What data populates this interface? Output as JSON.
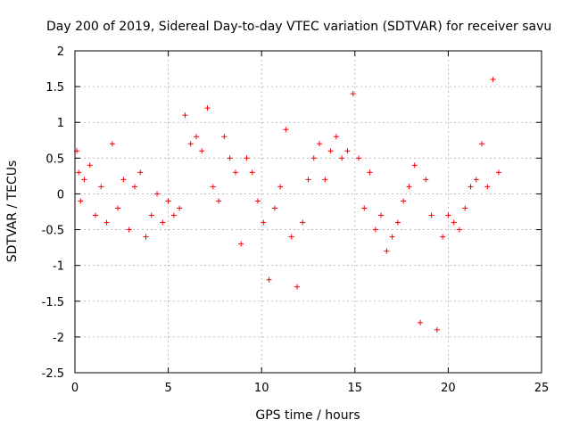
{
  "chart_data": {
    "type": "scatter",
    "title": "Day 200 of 2019, Sidereal Day-to-day VTEC variation (SDTVAR) for receiver savu",
    "xlabel": "GPS time / hours",
    "ylabel": "SDTVAR / TECUs",
    "xlim": [
      0,
      25
    ],
    "ylim": [
      -2.5,
      2
    ],
    "xticks": [
      "0",
      "5",
      "10",
      "15",
      "20",
      "25"
    ],
    "yticks": [
      "2",
      "1.5",
      "1",
      "0.5",
      "0",
      "-0.5",
      "-1",
      "-1.5",
      "-2",
      "-2.5"
    ],
    "grid": true,
    "marker": "+",
    "color": "#ff0000",
    "series": [
      {
        "name": "SDTVAR",
        "x": [
          0.1,
          0.2,
          0.3,
          0.5,
          0.8,
          1.1,
          1.4,
          1.7,
          2.0,
          2.3,
          2.6,
          2.9,
          3.2,
          3.5,
          3.8,
          4.1,
          4.4,
          4.7,
          5.0,
          5.3,
          5.6,
          5.9,
          6.2,
          6.5,
          6.8,
          7.1,
          7.4,
          7.7,
          8.0,
          8.3,
          8.6,
          8.9,
          9.2,
          9.5,
          9.8,
          10.1,
          10.4,
          10.7,
          11.0,
          11.3,
          11.6,
          11.9,
          12.2,
          12.5,
          12.8,
          13.1,
          13.4,
          13.7,
          14.0,
          14.3,
          14.6,
          14.9,
          15.2,
          15.5,
          15.8,
          16.1,
          16.4,
          16.7,
          17.0,
          17.3,
          17.6,
          17.9,
          18.2,
          18.5,
          18.8,
          19.1,
          19.4,
          19.7,
          20.0,
          20.3,
          20.6,
          20.9,
          21.2,
          21.5,
          21.8,
          22.1,
          22.4,
          22.7
        ],
        "y": [
          0.6,
          0.3,
          -0.1,
          0.2,
          0.4,
          -0.3,
          0.1,
          -0.4,
          0.7,
          -0.2,
          0.2,
          -0.5,
          0.1,
          0.3,
          -0.6,
          -0.3,
          0.0,
          -0.4,
          -0.1,
          -0.3,
          -0.2,
          1.1,
          0.7,
          0.8,
          0.6,
          1.2,
          0.1,
          -0.1,
          0.8,
          0.5,
          0.3,
          -0.7,
          0.5,
          0.3,
          -0.1,
          -0.4,
          -1.2,
          -0.2,
          0.1,
          0.9,
          -0.6,
          -1.3,
          -0.4,
          0.2,
          0.5,
          0.7,
          0.2,
          0.6,
          0.8,
          0.5,
          0.6,
          1.4,
          0.5,
          -0.2,
          0.3,
          -0.5,
          -0.3,
          -0.8,
          -0.6,
          -0.4,
          -0.1,
          0.1,
          0.4,
          -1.8,
          0.2,
          -0.3,
          -1.9,
          -0.6,
          -0.3,
          -0.4,
          -0.5,
          -0.2,
          0.1,
          0.2,
          0.7,
          0.1,
          1.6,
          0.3
        ]
      }
    ]
  }
}
